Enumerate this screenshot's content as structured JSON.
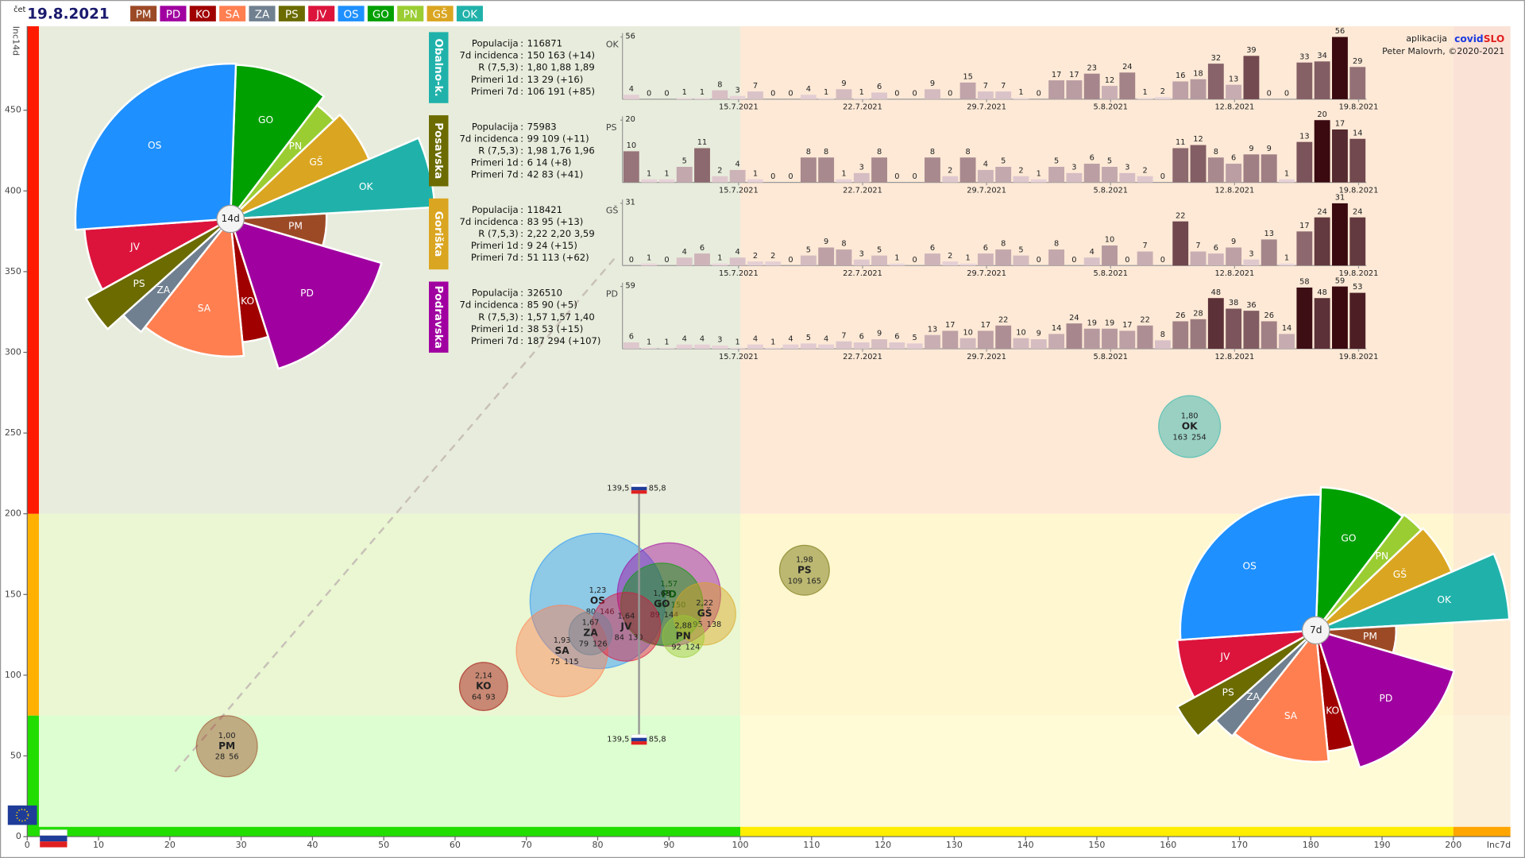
{
  "header": {
    "day": "čet",
    "date": "19.8.2021",
    "regions": [
      {
        "code": "PM",
        "color": "#9c4a26"
      },
      {
        "code": "PD",
        "color": "#a000a0"
      },
      {
        "code": "KO",
        "color": "#a00000"
      },
      {
        "code": "SA",
        "color": "#ff7f50"
      },
      {
        "code": "ZA",
        "color": "#708090"
      },
      {
        "code": "PS",
        "color": "#6b6b00"
      },
      {
        "code": "JV",
        "color": "#dc143c"
      },
      {
        "code": "OS",
        "color": "#1e90ff"
      },
      {
        "code": "GO",
        "color": "#00a000"
      },
      {
        "code": "PN",
        "color": "#9acd32"
      },
      {
        "code": "GŠ",
        "color": "#daa520"
      },
      {
        "code": "OK",
        "color": "#20b2aa"
      }
    ]
  },
  "credit": {
    "app": "aplikacija",
    "brand_a": "covid",
    "brand_b": "SLO",
    "author": "Peter Malovrh, ©2020-2021"
  },
  "region_panels": {
    "stat_labels": [
      "Populacija",
      "7d incidenca",
      "R (7,5,3)",
      "Primeri 1d",
      "Primeri 7d"
    ],
    "panels": [
      {
        "name": "Obalno-k.",
        "color": "#20b2aa",
        "stats": [
          "116871",
          "150 163 (+14)",
          "1,80 1,88 1,89",
          "13 29 (+16)",
          "106 191 (+85)"
        ]
      },
      {
        "name": "Posavska",
        "color": "#6b6b00",
        "stats": [
          "75983",
          "99 109 (+11)",
          "1,98 1,76 1,96",
          "6 14 (+8)",
          "42 83 (+41)"
        ]
      },
      {
        "name": "Goriška",
        "color": "#daa520",
        "stats": [
          "118421",
          "83 95 (+13)",
          "2,22 2,20 3,59",
          "9 24 (+15)",
          "51 113 (+62)"
        ]
      },
      {
        "name": "Podravska",
        "color": "#a000a0",
        "stats": [
          "326510",
          "85 90 (+5)",
          "1,57 1,57 1,40",
          "38 53 (+15)",
          "187 294 (+107)"
        ]
      }
    ]
  },
  "chart_data": [
    {
      "type": "bubble",
      "x_label": "Inc7d",
      "y_label": "Inc14d",
      "xlim": [
        0,
        208
      ],
      "ylim": [
        0,
        502
      ],
      "xticks": [
        0,
        10,
        20,
        30,
        40,
        50,
        60,
        70,
        80,
        90,
        100,
        110,
        120,
        130,
        140,
        150,
        160,
        170,
        180,
        190,
        200
      ],
      "yticks": [
        0,
        50,
        100,
        150,
        200,
        250,
        300,
        350,
        400,
        450
      ],
      "x_thresholds": [
        100,
        200
      ],
      "y_thresholds": [
        75,
        200
      ],
      "points": [
        {
          "name": "OS",
          "color": "#1e90ff",
          "x": 80,
          "y": 146,
          "size": 560000,
          "r_label": "1,23"
        },
        {
          "name": "PD",
          "color": "#a000a0",
          "x": 90,
          "y": 150,
          "size": 326510,
          "r_label": "1,57"
        },
        {
          "name": "SA",
          "color": "#ff7f50",
          "x": 75,
          "y": 115,
          "size": 256000,
          "r_label": "1,93"
        },
        {
          "name": "GO",
          "color": "#00a000",
          "x": 89,
          "y": 144,
          "size": 206000,
          "r_label": "1,63"
        },
        {
          "name": "JV",
          "color": "#dc143c",
          "x": 84,
          "y": 130,
          "size": 145000,
          "r_label": "1,64"
        },
        {
          "name": "GŠ",
          "color": "#daa520",
          "x": 95,
          "y": 138,
          "size": 118421,
          "r_label": "2,22"
        },
        {
          "name": "OK",
          "color": "#20b2aa",
          "x": 163,
          "y": 254,
          "size": 116871,
          "r_label": "1,80"
        },
        {
          "name": "PM",
          "color": "#9c4a26",
          "x": 28,
          "y": 56,
          "size": 114000,
          "r_label": "1,00"
        },
        {
          "name": "PS",
          "color": "#6b6b00",
          "x": 109,
          "y": 165,
          "size": 75983,
          "r_label": "1,98"
        },
        {
          "name": "KO",
          "color": "#a00000",
          "x": 64,
          "y": 93,
          "size": 71000,
          "r_label": "2,14"
        },
        {
          "name": "ZA",
          "color": "#708090",
          "x": 79,
          "y": 126,
          "size": 57000,
          "r_label": "1,67"
        },
        {
          "name": "PN",
          "color": "#9acd32",
          "x": 92,
          "y": 124,
          "size": 53000,
          "r_label": "2,88"
        }
      ],
      "reference": {
        "x": 85.8,
        "y": 139.5,
        "x_label": "85,8",
        "y_label": "139,5"
      }
    },
    {
      "type": "polar-area",
      "center_label": "14d",
      "categories": [
        "GO",
        "PN",
        "GŠ",
        "OK",
        "PM",
        "PD",
        "KO",
        "SA",
        "ZA",
        "PS",
        "JV",
        "OS"
      ],
      "colors": [
        "#00a000",
        "#9acd32",
        "#daa520",
        "#20b2aa",
        "#9c4a26",
        "#a000a0",
        "#a00000",
        "#ff7f50",
        "#708090",
        "#6b6b00",
        "#dc143c",
        "#1e90ff"
      ],
      "values": [
        144,
        124,
        138,
        254,
        56,
        150,
        93,
        115,
        126,
        165,
        130,
        146
      ],
      "weights": [
        206000,
        53000,
        118421,
        116871,
        114000,
        326510,
        71000,
        256000,
        57000,
        75983,
        145000,
        560000
      ]
    },
    {
      "type": "polar-area",
      "center_label": "7d",
      "categories": [
        "GO",
        "PN",
        "GŠ",
        "OK",
        "PM",
        "PD",
        "KO",
        "SA",
        "ZA",
        "PS",
        "JV",
        "OS"
      ],
      "colors": [
        "#00a000",
        "#9acd32",
        "#daa520",
        "#20b2aa",
        "#9c4a26",
        "#a000a0",
        "#a00000",
        "#ff7f50",
        "#708090",
        "#6b6b00",
        "#dc143c",
        "#1e90ff"
      ],
      "values": [
        89,
        92,
        95,
        163,
        28,
        90,
        64,
        75,
        79,
        109,
        84,
        80
      ],
      "weights": [
        206000,
        53000,
        118421,
        116871,
        114000,
        326510,
        71000,
        256000,
        57000,
        75983,
        145000,
        560000
      ]
    },
    {
      "type": "bar",
      "label": "OK",
      "ylim": [
        0,
        56
      ],
      "yticks": [
        56
      ],
      "categories": [
        null,
        null,
        null,
        null,
        null,
        null,
        "15.7.2021",
        null,
        null,
        null,
        null,
        null,
        null,
        "22.7.2021",
        null,
        null,
        null,
        null,
        null,
        null,
        "29.7.2021",
        null,
        null,
        null,
        null,
        null,
        null,
        "5.8.2021",
        null,
        null,
        null,
        null,
        null,
        null,
        "12.8.2021",
        null,
        null,
        null,
        null,
        null,
        null,
        "19.8.2021"
      ],
      "values": [
        4,
        0,
        0,
        1,
        1,
        8,
        3,
        7,
        0,
        0,
        4,
        1,
        9,
        1,
        6,
        0,
        0,
        9,
        0,
        15,
        7,
        7,
        1,
        0,
        17,
        17,
        23,
        12,
        24,
        1,
        2,
        16,
        18,
        32,
        13,
        39,
        0,
        0,
        33,
        34,
        56,
        29
      ]
    },
    {
      "type": "bar",
      "label": "PS",
      "ylim": [
        0,
        20
      ],
      "yticks": [
        20
      ],
      "categories": [
        null,
        null,
        null,
        null,
        null,
        null,
        "15.7.2021",
        null,
        null,
        null,
        null,
        null,
        null,
        "22.7.2021",
        null,
        null,
        null,
        null,
        null,
        null,
        "29.7.2021",
        null,
        null,
        null,
        null,
        null,
        null,
        "5.8.2021",
        null,
        null,
        null,
        null,
        null,
        null,
        "12.8.2021",
        null,
        null,
        null,
        null,
        null,
        null,
        "19.8.2021"
      ],
      "values": [
        10,
        1,
        1,
        5,
        11,
        2,
        4,
        1,
        0,
        0,
        8,
        8,
        1,
        3,
        8,
        0,
        0,
        8,
        2,
        8,
        4,
        5,
        2,
        1,
        5,
        3,
        6,
        5,
        3,
        2,
        0,
        11,
        12,
        8,
        6,
        9,
        9,
        1,
        13,
        20,
        17,
        14
      ]
    },
    {
      "type": "bar",
      "label": "GŠ",
      "ylim": [
        0,
        31
      ],
      "yticks": [
        31
      ],
      "categories": [
        null,
        null,
        null,
        null,
        null,
        null,
        "15.7.2021",
        null,
        null,
        null,
        null,
        null,
        null,
        "22.7.2021",
        null,
        null,
        null,
        null,
        null,
        null,
        "29.7.2021",
        null,
        null,
        null,
        null,
        null,
        null,
        "5.8.2021",
        null,
        null,
        null,
        null,
        null,
        null,
        "12.8.2021",
        null,
        null,
        null,
        null,
        null,
        null,
        "19.8.2021"
      ],
      "values": [
        0,
        1,
        0,
        4,
        6,
        1,
        4,
        2,
        2,
        0,
        5,
        9,
        8,
        3,
        5,
        1,
        0,
        6,
        2,
        1,
        6,
        8,
        5,
        0,
        8,
        0,
        4,
        10,
        0,
        7,
        0,
        22,
        7,
        6,
        9,
        3,
        13,
        1,
        17,
        24,
        31,
        24
      ]
    },
    {
      "type": "bar",
      "label": "PD",
      "ylim": [
        0,
        59
      ],
      "yticks": [
        59
      ],
      "categories": [
        null,
        null,
        null,
        null,
        null,
        null,
        "15.7.2021",
        null,
        null,
        null,
        null,
        null,
        null,
        "22.7.2021",
        null,
        null,
        null,
        null,
        null,
        null,
        "29.7.2021",
        null,
        null,
        null,
        null,
        null,
        null,
        "5.8.2021",
        null,
        null,
        null,
        null,
        null,
        null,
        "12.8.2021",
        null,
        null,
        null,
        null,
        null,
        null,
        "19.8.2021"
      ],
      "values": [
        6,
        1,
        1,
        4,
        4,
        3,
        1,
        4,
        1,
        4,
        5,
        4,
        7,
        6,
        9,
        6,
        5,
        13,
        17,
        10,
        17,
        22,
        10,
        9,
        14,
        24,
        19,
        19,
        17,
        22,
        8,
        26,
        28,
        48,
        38,
        36,
        26,
        14,
        58,
        48,
        59,
        53
      ]
    }
  ]
}
